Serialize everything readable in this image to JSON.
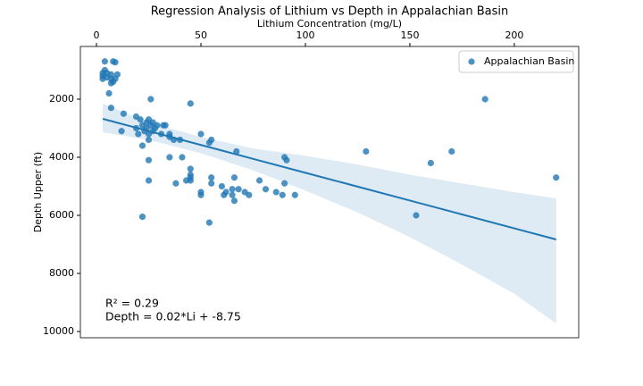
{
  "chart_data": {
    "type": "scatter",
    "title": "Regression Analysis of Lithium vs Depth in Appalachian Basin",
    "x_label": "Lithium Concentration (mg/L)",
    "y_label": "Depth Upper (ft)",
    "x_axis_position": "top",
    "invert_y": true,
    "xlim": [
      -7.7,
      230.8
    ],
    "xticks": [
      0,
      50,
      100,
      150,
      200
    ],
    "ylim": [
      185,
      10215
    ],
    "yticks": [
      2000,
      4000,
      6000,
      8000,
      10000
    ],
    "legend": "upper right",
    "series": [
      {
        "name": "Appalachian Basin",
        "color": "#1f77b4",
        "x": [
          3,
          3,
          3,
          4,
          4,
          5,
          5,
          6,
          7,
          7,
          7,
          8,
          8,
          9,
          9,
          10,
          7,
          12,
          13,
          19,
          19,
          20,
          21,
          22,
          22,
          23,
          24,
          24,
          25,
          25,
          25,
          25,
          25,
          26,
          26,
          27,
          27,
          28,
          29,
          31,
          32,
          33,
          35,
          35,
          35,
          37,
          38,
          40,
          41,
          43,
          45,
          45,
          45,
          45,
          45,
          50,
          50,
          50,
          54,
          54,
          55,
          55,
          55,
          60,
          61,
          62,
          65,
          65,
          66,
          66,
          67,
          68,
          71,
          73,
          78,
          81,
          86,
          89,
          90,
          90,
          91,
          95,
          129,
          153,
          160,
          170,
          186,
          220,
          22
        ],
        "values": [
          1100,
          1200,
          1300,
          1000,
          700,
          1100,
          1250,
          1800,
          1150,
          1300,
          1450,
          700,
          1400,
          730,
          1300,
          1150,
          2300,
          3100,
          2500,
          2600,
          3000,
          3200,
          2700,
          2900,
          3600,
          3100,
          3000,
          2800,
          2700,
          3200,
          3400,
          4100,
          4800,
          2000,
          2900,
          3100,
          2800,
          3000,
          2900,
          3200,
          2900,
          2900,
          3200,
          3300,
          4000,
          3400,
          4900,
          3400,
          4000,
          4800,
          2150,
          4400,
          4600,
          4700,
          4800,
          3200,
          5200,
          5300,
          3500,
          6250,
          3400,
          4700,
          4900,
          5000,
          5300,
          5200,
          5100,
          5300,
          4700,
          5500,
          3800,
          5100,
          5200,
          5300,
          4800,
          5100,
          5200,
          5300,
          4000,
          4900,
          4100,
          5300,
          3800,
          6000,
          4200,
          3800,
          2000,
          4700,
          6050
        ]
      }
    ],
    "regression": {
      "color": "#1f77b4",
      "x": [
        3,
        25,
        50,
        75,
        100,
        125,
        150,
        175,
        200,
        220
      ],
      "values": [
        2677,
        3098,
        3577,
        4055,
        4534,
        5012,
        5491,
        5969,
        6448,
        6831
      ],
      "ci_lower": [
        2154,
        2800,
        3300,
        3700,
        3950,
        4250,
        4600,
        4900,
        5200,
        5415
      ],
      "ci_upper": [
        3138,
        3400,
        3860,
        4450,
        5150,
        5900,
        6750,
        7700,
        8700,
        9723
      ]
    },
    "annotations": [
      "R² = 0.29",
      "Depth = 0.02*Li + -8.75"
    ]
  }
}
